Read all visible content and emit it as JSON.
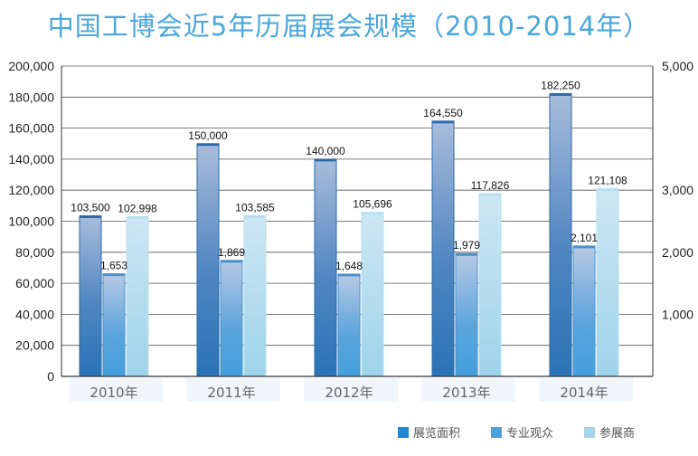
{
  "chart_data": {
    "type": "bar",
    "title": "中国工博会近5年历届展会规模（2010-2014年）",
    "categories": [
      "2010年",
      "2011年",
      "2012年",
      "2013年",
      "2014年"
    ],
    "series": [
      {
        "name": "展览面积",
        "axis": "left",
        "color": "#2f7fc0",
        "values": [
          103500,
          150000,
          140000,
          164550,
          182250
        ],
        "labels": [
          "103,500",
          "150,000",
          "140,000",
          "164,550",
          "182,250"
        ]
      },
      {
        "name": "专业观众",
        "axis": "right",
        "color": "#4ea8e0",
        "values": [
          1653,
          1869,
          1648,
          1979,
          2101
        ],
        "labels": [
          "1,653",
          "1,869",
          "1,648",
          "1,979",
          "2,101"
        ]
      },
      {
        "name": "参展商",
        "axis": "left",
        "color": "#a8d8ee",
        "values": [
          102998,
          103585,
          105696,
          117826,
          121108
        ],
        "labels": [
          "102,998",
          "103,585",
          "105,696",
          "117,826",
          "121,108"
        ]
      }
    ],
    "y_left": {
      "min": 0,
      "max": 200000,
      "ticks": [
        "0",
        "20,000",
        "40,000",
        "60,000",
        "80,000",
        "100,000",
        "120,000",
        "140,000",
        "160,000",
        "180,000",
        "200,000"
      ]
    },
    "y_right": {
      "min": 0,
      "max": 5000,
      "ticks": [
        "1,000",
        "2,000",
        "3,000",
        "5,000"
      ]
    },
    "grid": true,
    "legend_position": "bottom-right"
  }
}
